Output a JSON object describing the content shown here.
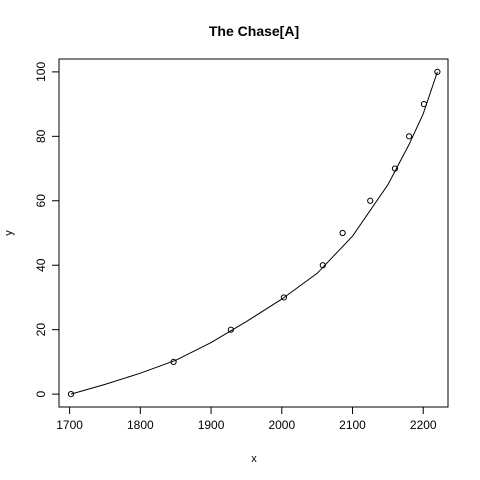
{
  "chart_data": {
    "type": "scatter",
    "title": "The Chase[A]",
    "xlabel": "x",
    "ylabel": "y",
    "xlim": [
      1685,
      2235
    ],
    "ylim": [
      -4,
      104
    ],
    "x_ticks": [
      1700,
      1800,
      1900,
      2000,
      2100,
      2200
    ],
    "y_ticks": [
      0,
      20,
      40,
      60,
      80,
      100
    ],
    "grid": false,
    "legend": "none",
    "series": [
      {
        "style": "points",
        "marker": "open-circle",
        "x": [
          1702,
          1847,
          1928,
          2003,
          2058,
          2086,
          2125,
          2160,
          2180,
          2201,
          2220
        ],
        "y": [
          0,
          10,
          20,
          30,
          40,
          50,
          60,
          70,
          80,
          90,
          100
        ]
      },
      {
        "style": "line",
        "x": [
          1702,
          1750,
          1800,
          1850,
          1900,
          1950,
          2000,
          2050,
          2100,
          2150,
          2180,
          2200,
          2220
        ],
        "y": [
          0,
          3,
          6.5,
          10.5,
          16,
          22.5,
          29.5,
          37.5,
          49,
          65,
          77.5,
          87,
          100
        ]
      }
    ]
  }
}
